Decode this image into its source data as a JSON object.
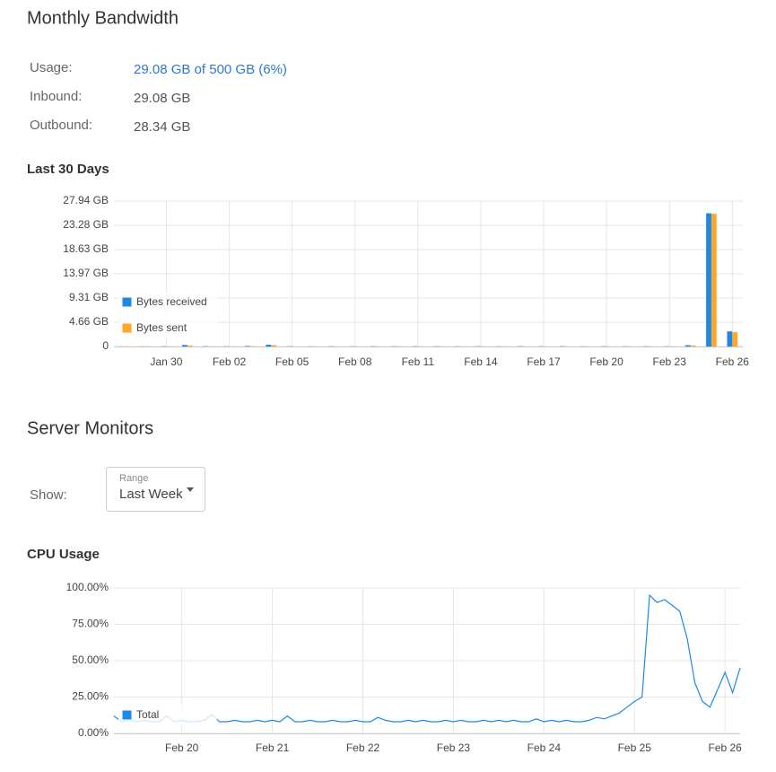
{
  "bandwidth": {
    "title": "Monthly Bandwidth",
    "rows": [
      {
        "label": "Usage:",
        "value": "29.08 GB of 500 GB (6%)"
      },
      {
        "label": "Inbound:",
        "value": "29.08 GB"
      },
      {
        "label": "Outbound:",
        "value": "28.34 GB"
      }
    ]
  },
  "monitors": {
    "title": "Server Monitors",
    "show_label": "Show:",
    "range_label": "Range",
    "range_value": "Last Week"
  },
  "chart_data": [
    {
      "type": "bar",
      "title": "Last 30 Days",
      "categories": [
        null,
        null,
        "Jan 30",
        null,
        null,
        "Feb 02",
        null,
        null,
        "Feb 05",
        null,
        null,
        "Feb 08",
        null,
        null,
        "Feb 11",
        null,
        null,
        "Feb 14",
        null,
        null,
        "Feb 17",
        null,
        null,
        "Feb 20",
        null,
        null,
        "Feb 23",
        null,
        null,
        "Feb 26"
      ],
      "series": [
        {
          "name": "Bytes received",
          "color": "#1e88e5",
          "values": [
            0.02,
            0.03,
            0.05,
            0.3,
            0.05,
            0.04,
            0.1,
            0.35,
            0.05,
            0.04,
            0.05,
            0.04,
            0.05,
            0.04,
            0.05,
            0.04,
            0.04,
            0.05,
            0.04,
            0.05,
            0.04,
            0.05,
            0.04,
            0.05,
            0.04,
            0.05,
            0.04,
            0.25,
            25.6,
            2.9
          ]
        },
        {
          "name": "Bytes sent",
          "color": "#ffa726",
          "values": [
            0.02,
            0.03,
            0.03,
            0.2,
            0.03,
            0.03,
            0.05,
            0.25,
            0.03,
            0.03,
            0.03,
            0.03,
            0.03,
            0.03,
            0.03,
            0.03,
            0.03,
            0.03,
            0.03,
            0.03,
            0.03,
            0.03,
            0.03,
            0.03,
            0.03,
            0.03,
            0.03,
            0.2,
            25.5,
            2.75
          ]
        }
      ],
      "ylim": [
        0,
        27.94
      ],
      "yticks": [
        0,
        {
          "value": 4.66,
          "label": "4.66 GB"
        },
        {
          "value": 9.31,
          "label": "9.31 GB"
        },
        {
          "value": 13.97,
          "label": "13.97 GB"
        },
        {
          "value": 18.63,
          "label": "18.63 GB"
        },
        {
          "value": 23.28,
          "label": "23.28 GB"
        },
        {
          "value": 27.94,
          "label": "27.94 GB"
        }
      ],
      "grid": true,
      "legend": "lower left"
    },
    {
      "type": "line",
      "title": "CPU Usage",
      "categories": [
        null,
        null,
        null,
        null,
        null,
        null,
        null,
        null,
        null,
        "Feb 20",
        null,
        null,
        null,
        null,
        null,
        null,
        null,
        null,
        null,
        null,
        null,
        "Feb 21",
        null,
        null,
        null,
        null,
        null,
        null,
        null,
        null,
        null,
        null,
        null,
        "Feb 22",
        null,
        null,
        null,
        null,
        null,
        null,
        null,
        null,
        null,
        null,
        null,
        "Feb 23",
        null,
        null,
        null,
        null,
        null,
        null,
        null,
        null,
        null,
        null,
        null,
        "Feb 24",
        null,
        null,
        null,
        null,
        null,
        null,
        null,
        null,
        null,
        null,
        null,
        "Feb 25",
        null,
        null,
        null,
        null,
        null,
        null,
        null,
        null,
        null,
        null,
        null,
        "Feb 26",
        null,
        null
      ],
      "series": [
        {
          "name": "Total",
          "color": "#1e88e5",
          "values": [
            12,
            8,
            9,
            8,
            9,
            8,
            8,
            12,
            8,
            9,
            8,
            8,
            9,
            13,
            8,
            8,
            9,
            8,
            8,
            9,
            8,
            9,
            8,
            12,
            8,
            8,
            9,
            8,
            8,
            9,
            8,
            8,
            9,
            8,
            8,
            11,
            9,
            8,
            8,
            9,
            8,
            9,
            8,
            8,
            9,
            8,
            9,
            8,
            8,
            9,
            8,
            9,
            8,
            9,
            8,
            8,
            10,
            8,
            9,
            8,
            9,
            8,
            8,
            9,
            11,
            10,
            12,
            14,
            18,
            22,
            25,
            95,
            90,
            92,
            88,
            84,
            65,
            35,
            22,
            18,
            30,
            42,
            28,
            45
          ]
        }
      ],
      "ylim": [
        0,
        100
      ],
      "yticks": [
        {
          "value": 0,
          "label": "0.00%"
        },
        {
          "value": 25,
          "label": "25.00%"
        },
        {
          "value": 50,
          "label": "50.00%"
        },
        {
          "value": 75,
          "label": "75.00%"
        },
        {
          "value": 100,
          "label": "100.00%"
        }
      ],
      "grid": true,
      "legend": "lower left"
    }
  ]
}
